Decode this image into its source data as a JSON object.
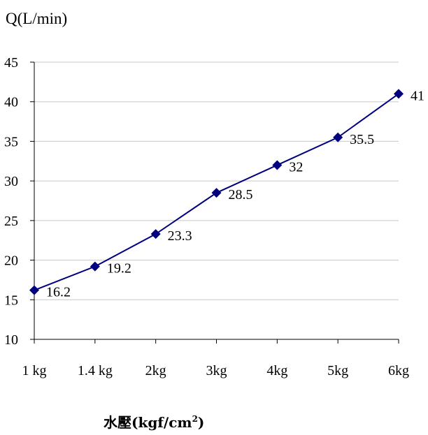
{
  "chart_data": {
    "type": "line",
    "title": "",
    "ylabel": "Q(L/min)",
    "xlabel": "水壓(kgf/cm",
    "xlabel_sup": "2",
    "xlabel_close": ")",
    "categories": [
      "1 kg",
      "1.4 kg",
      "2kg",
      "3kg",
      "4kg",
      "5kg",
      "6kg"
    ],
    "series": [
      {
        "values": [
          16.2,
          19.2,
          23.3,
          28.5,
          32,
          35.5,
          41
        ],
        "labels": [
          "16.2",
          "19.2",
          "23.3",
          "28.5",
          "32",
          "35.5",
          "41"
        ]
      }
    ],
    "ylim": [
      10,
      45
    ],
    "yticks": [
      "10",
      "15",
      "20",
      "25",
      "30",
      "35",
      "40",
      "45"
    ],
    "grid": true,
    "legend": "none",
    "colors": {
      "line": "#00007f",
      "grid": "#c8c8c8",
      "axis": "#000000"
    }
  }
}
